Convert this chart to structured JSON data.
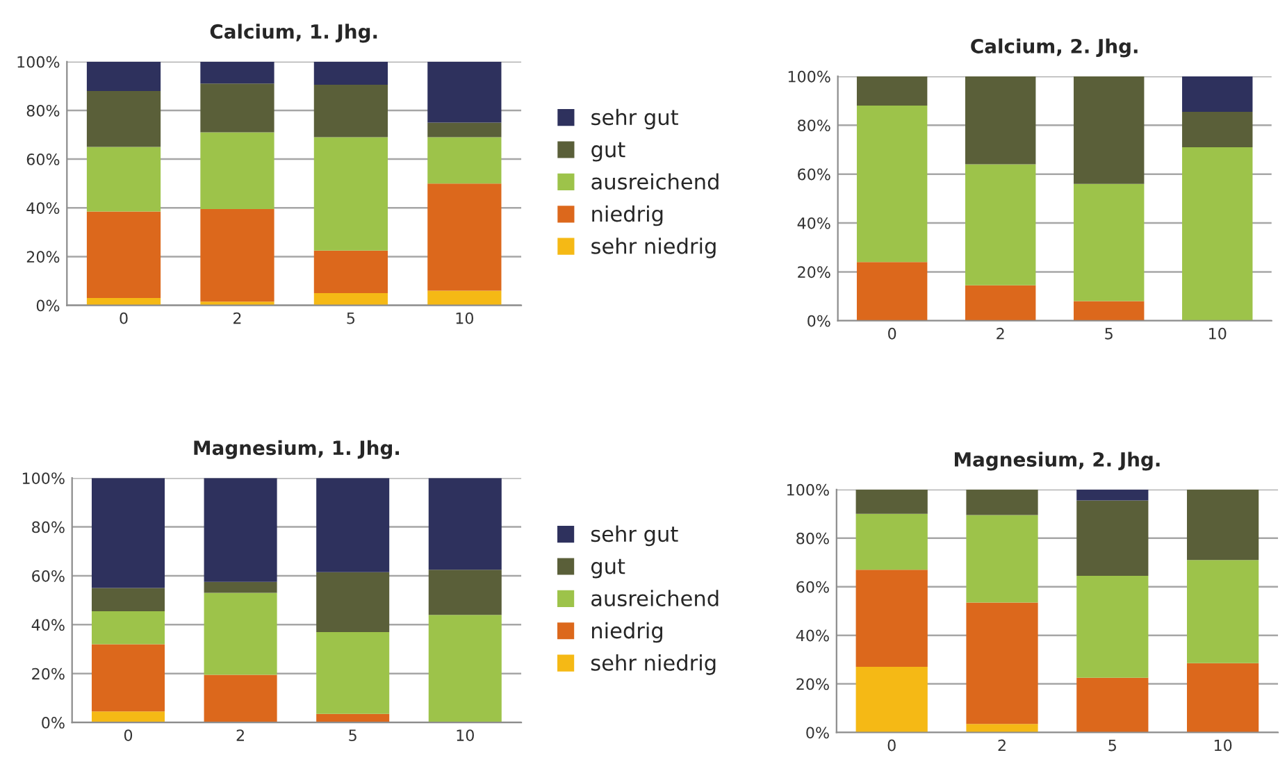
{
  "chart_data": [
    {
      "type": "bar",
      "stacked": true,
      "title": "Calcium, 1. Jhg.",
      "categories": [
        "0",
        "2",
        "5",
        "10"
      ],
      "ylim": [
        0,
        100
      ],
      "yticks": [
        {
          "value": 0,
          "label": "0%"
        },
        {
          "value": 20,
          "label": "20%"
        },
        {
          "value": 40,
          "label": "40%"
        },
        {
          "value": 60,
          "label": "60%"
        },
        {
          "value": 80,
          "label": "80%"
        },
        {
          "value": 100,
          "label": "100%"
        }
      ],
      "grid": "y",
      "legend": "right",
      "series": [
        {
          "name": "sehr niedrig",
          "color": "#f5b915",
          "values": [
            3,
            1.5,
            5,
            6
          ]
        },
        {
          "name": "niedrig",
          "color": "#dc681c",
          "values": [
            35.5,
            38,
            17.5,
            44
          ]
        },
        {
          "name": "ausreichend",
          "color": "#9dc34a",
          "values": [
            26.5,
            31.5,
            46.5,
            19
          ]
        },
        {
          "name": "gut",
          "color": "#5a5f39",
          "values": [
            23,
            20,
            21.5,
            6
          ]
        },
        {
          "name": "sehr gut",
          "color": "#2e315d",
          "values": [
            12,
            9,
            9.5,
            25
          ]
        }
      ]
    },
    {
      "type": "bar",
      "stacked": true,
      "title": "Calcium, 2. Jhg.",
      "categories": [
        "0",
        "2",
        "5",
        "10"
      ],
      "ylim": [
        0,
        100
      ],
      "yticks": [
        {
          "value": 0,
          "label": "0%"
        },
        {
          "value": 20,
          "label": "20%"
        },
        {
          "value": 40,
          "label": "40%"
        },
        {
          "value": 60,
          "label": "60%"
        },
        {
          "value": 80,
          "label": "80%"
        },
        {
          "value": 100,
          "label": "100%"
        }
      ],
      "grid": "y",
      "series": [
        {
          "color": "#f5b915",
          "values": [
            0,
            0,
            0,
            0
          ]
        },
        {
          "color": "#dc681c",
          "values": [
            24,
            14.5,
            8,
            0
          ]
        },
        {
          "color": "#9dc34a",
          "values": [
            64,
            49.5,
            48,
            71
          ]
        },
        {
          "color": "#5a5f39",
          "values": [
            12,
            36,
            44,
            14.5
          ]
        },
        {
          "color": "#2e315d",
          "values": [
            0,
            0,
            0,
            14.5
          ]
        }
      ]
    },
    {
      "type": "bar",
      "stacked": true,
      "title": "Magnesium, 1. Jhg.",
      "categories": [
        "0",
        "2",
        "5",
        "10"
      ],
      "ylim": [
        0,
        100
      ],
      "yticks": [
        {
          "value": 0,
          "label": "0%"
        },
        {
          "value": 20,
          "label": "20%"
        },
        {
          "value": 40,
          "label": "40%"
        },
        {
          "value": 60,
          "label": "60%"
        },
        {
          "value": 80,
          "label": "80%"
        },
        {
          "value": 100,
          "label": "100%"
        }
      ],
      "grid": "y",
      "legend": "right",
      "series": [
        {
          "name": "sehr niedrig",
          "color": "#f5b915",
          "values": [
            4.5,
            0,
            0,
            0
          ]
        },
        {
          "name": "niedrig",
          "color": "#dc681c",
          "values": [
            27.5,
            19.5,
            3.5,
            0
          ]
        },
        {
          "name": "ausreichend",
          "color": "#9dc34a",
          "values": [
            13.5,
            33.5,
            33.5,
            44
          ]
        },
        {
          "name": "gut",
          "color": "#5a5f39",
          "values": [
            9.5,
            4.5,
            24.5,
            18.5
          ]
        },
        {
          "name": "sehr gut",
          "color": "#2e315d",
          "values": [
            45,
            42.5,
            38.5,
            37.5
          ]
        }
      ]
    },
    {
      "type": "bar",
      "stacked": true,
      "title": "Magnesium, 2. Jhg.",
      "categories": [
        "0",
        "2",
        "5",
        "10"
      ],
      "ylim": [
        0,
        100
      ],
      "yticks": [
        {
          "value": 0,
          "label": "0%"
        },
        {
          "value": 20,
          "label": "20%"
        },
        {
          "value": 40,
          "label": "40%"
        },
        {
          "value": 60,
          "label": "60%"
        },
        {
          "value": 80,
          "label": "80%"
        },
        {
          "value": 100,
          "label": "100%"
        }
      ],
      "grid": "y",
      "series": [
        {
          "color": "#f5b915",
          "values": [
            27,
            3.5,
            0,
            0
          ]
        },
        {
          "color": "#dc681c",
          "values": [
            40,
            50,
            22.5,
            28.5
          ]
        },
        {
          "color": "#9dc34a",
          "values": [
            23,
            36,
            42,
            42.5
          ]
        },
        {
          "color": "#5a5f39",
          "values": [
            10,
            10.5,
            31,
            29
          ]
        },
        {
          "color": "#2e315d",
          "values": [
            0,
            0,
            4.5,
            0
          ]
        }
      ]
    }
  ]
}
